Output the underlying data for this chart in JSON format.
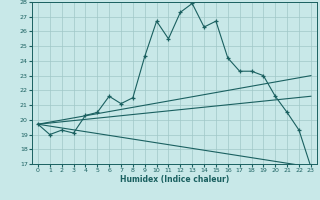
{
  "xlabel": "Humidex (Indice chaleur)",
  "bg_color": "#c8e8e8",
  "grid_color": "#a0c8c8",
  "line_color": "#1a6060",
  "xlim": [
    -0.5,
    23.5
  ],
  "ylim": [
    17,
    28
  ],
  "xticks": [
    0,
    1,
    2,
    3,
    4,
    5,
    6,
    7,
    8,
    9,
    10,
    11,
    12,
    13,
    14,
    15,
    16,
    17,
    18,
    19,
    20,
    21,
    22,
    23
  ],
  "yticks": [
    17,
    18,
    19,
    20,
    21,
    22,
    23,
    24,
    25,
    26,
    27,
    28
  ],
  "line1": {
    "x": [
      0,
      1,
      2,
      3,
      4,
      5,
      6,
      7,
      8,
      9,
      10,
      11,
      12,
      13,
      14,
      15,
      16,
      17,
      18,
      19,
      20,
      21,
      22,
      23
    ],
    "y": [
      19.7,
      19.0,
      19.3,
      19.1,
      20.3,
      20.5,
      21.6,
      21.1,
      21.5,
      24.3,
      26.7,
      25.5,
      27.3,
      27.9,
      26.3,
      26.7,
      24.2,
      23.3,
      23.3,
      23.0,
      21.6,
      20.5,
      19.3,
      16.8
    ]
  },
  "line2": {
    "x": [
      0,
      23
    ],
    "y": [
      19.7,
      23.0
    ]
  },
  "line3": {
    "x": [
      0,
      23
    ],
    "y": [
      19.7,
      21.6
    ]
  },
  "line4": {
    "x": [
      0,
      23
    ],
    "y": [
      19.7,
      16.8
    ]
  }
}
